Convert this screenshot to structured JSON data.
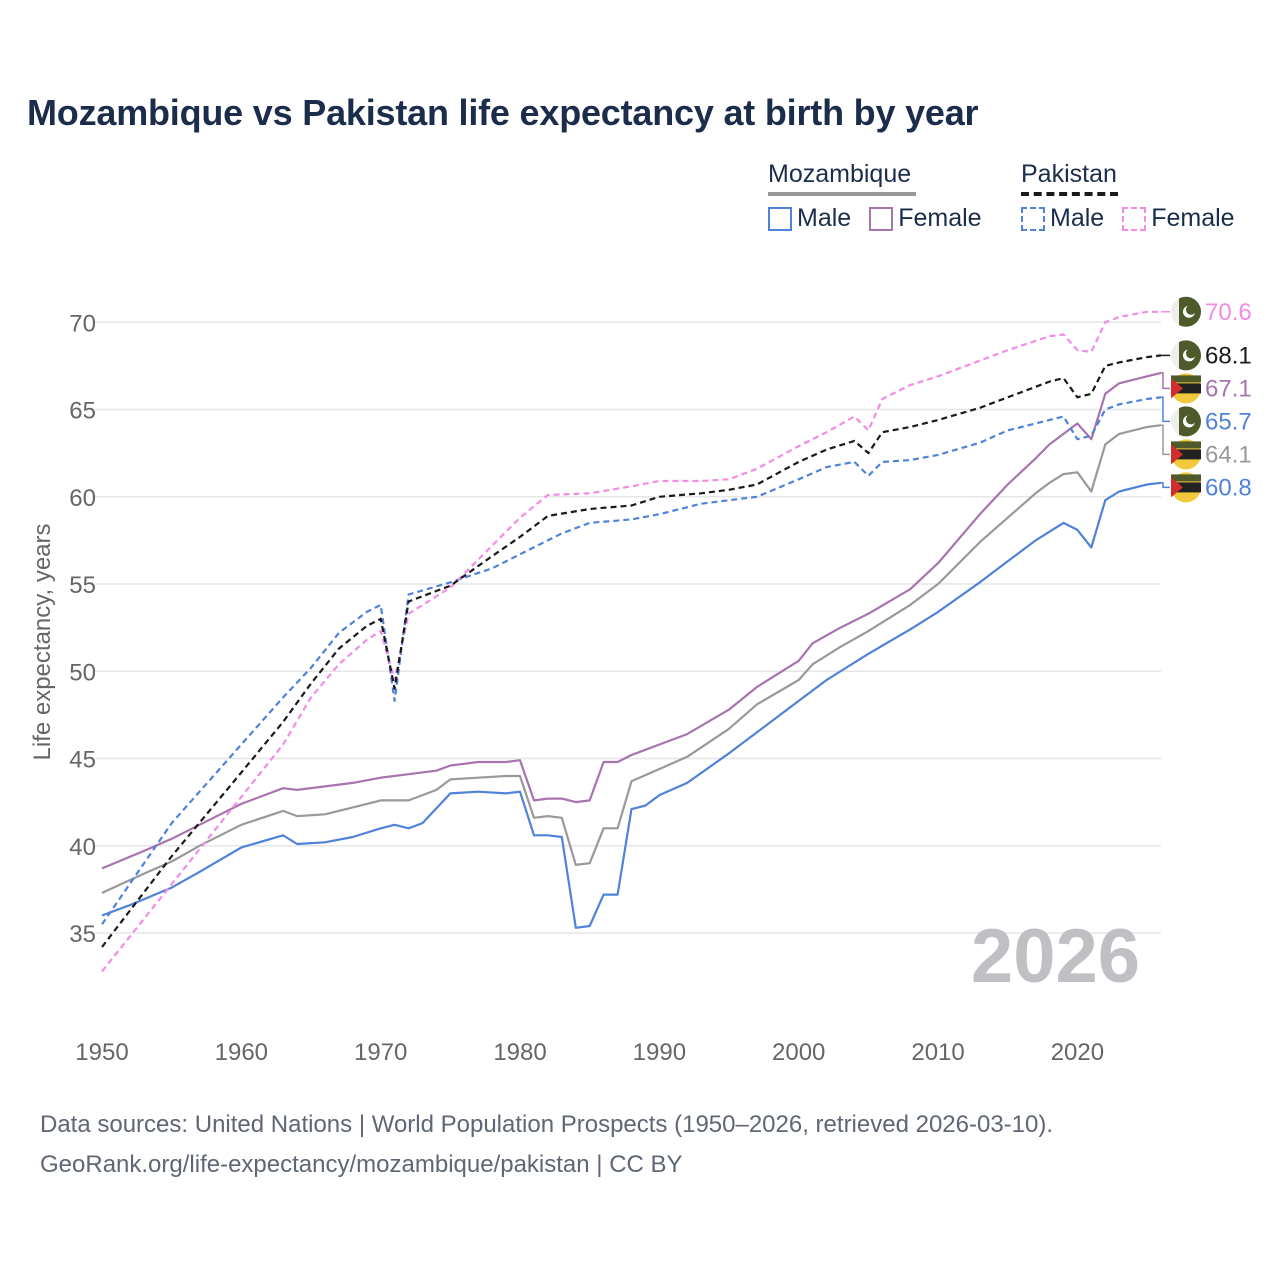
{
  "title": "Mozambique vs Pakistan life expectancy at birth by year",
  "legend": {
    "mozambique": {
      "label": "Mozambique",
      "male": "Male",
      "female": "Female"
    },
    "pakistan": {
      "label": "Pakistan",
      "male": "Male",
      "female": "Female"
    }
  },
  "colors": {
    "moz_male": "#4f82d8",
    "moz_female": "#a873ae",
    "moz_total": "#999999",
    "pak_male": "#4f82d8",
    "pak_female": "#f28ce6",
    "pak_total": "#1a1a1a",
    "grid": "#e6e6e6",
    "year_watermark": "#c0c0c4",
    "flag_pakistan": "#4e5a2a",
    "flag_mozambique": "#f2c93a"
  },
  "source": {
    "line1": "Data sources: United Nations | World Population Prospects (1950–2026, retrieved 2026-03-10).",
    "line2": "GeoRank.org/life-expectancy/mozambique/pakistan | CC BY"
  },
  "chart_data": {
    "type": "line",
    "title": "Mozambique vs Pakistan life expectancy at birth by year",
    "xlabel": "",
    "ylabel": "Life expectancy, years",
    "xlim": [
      1950,
      2026
    ],
    "ylim": [
      30,
      73
    ],
    "x_ticks": [
      1950,
      1960,
      1970,
      1980,
      1990,
      2000,
      2010,
      2020
    ],
    "y_ticks": [
      35,
      40,
      45,
      50,
      55,
      60,
      65,
      70
    ],
    "grid": true,
    "year_label": "2026",
    "series": [
      {
        "key": "moz_male",
        "name": "Mozambique Male",
        "country": "mozambique",
        "dashed": false,
        "end_label": "60.8",
        "x": [
          1950,
          1952,
          1955,
          1957,
          1960,
          1963,
          1964,
          1966,
          1968,
          1970,
          1971,
          1972,
          1973,
          1975,
          1977,
          1979,
          1980,
          1981,
          1982,
          1983,
          1984,
          1985,
          1986,
          1987,
          1988,
          1989,
          1990,
          1992,
          1995,
          1998,
          2000,
          2002,
          2005,
          2008,
          2010,
          2013,
          2015,
          2017,
          2018,
          2019,
          2020,
          2021,
          2022,
          2023,
          2025,
          2026
        ],
        "y": [
          36.0,
          36.6,
          37.6,
          38.5,
          39.9,
          40.6,
          40.1,
          40.2,
          40.5,
          41.0,
          41.2,
          41.0,
          41.3,
          43.0,
          43.1,
          43.0,
          43.1,
          40.6,
          40.6,
          40.5,
          35.3,
          35.4,
          37.2,
          37.2,
          42.1,
          42.3,
          42.9,
          43.6,
          45.3,
          47.1,
          48.3,
          49.5,
          51.0,
          52.4,
          53.4,
          55.1,
          56.3,
          57.5,
          58.0,
          58.5,
          58.1,
          57.1,
          59.8,
          60.3,
          60.7,
          60.8
        ]
      },
      {
        "key": "moz_female",
        "name": "Mozambique Female",
        "country": "mozambique",
        "dashed": false,
        "end_label": "67.1",
        "x": [
          1950,
          1953,
          1955,
          1957,
          1960,
          1963,
          1964,
          1966,
          1968,
          1970,
          1972,
          1974,
          1975,
          1977,
          1979,
          1980,
          1981,
          1982,
          1983,
          1984,
          1985,
          1986,
          1987,
          1988,
          1990,
          1992,
          1995,
          1997,
          2000,
          2001,
          2003,
          2005,
          2008,
          2010,
          2013,
          2015,
          2017,
          2018,
          2019,
          2020,
          2021,
          2022,
          2023,
          2025,
          2026
        ],
        "y": [
          38.7,
          39.7,
          40.4,
          41.2,
          42.4,
          43.3,
          43.2,
          43.4,
          43.6,
          43.9,
          44.1,
          44.3,
          44.6,
          44.8,
          44.8,
          44.9,
          42.6,
          42.7,
          42.7,
          42.5,
          42.6,
          44.8,
          44.8,
          45.2,
          45.8,
          46.4,
          47.8,
          49.1,
          50.6,
          51.6,
          52.5,
          53.3,
          54.7,
          56.2,
          59.0,
          60.7,
          62.2,
          63.0,
          63.6,
          64.2,
          63.3,
          65.9,
          66.5,
          66.9,
          67.1
        ]
      },
      {
        "key": "moz_total",
        "name": "Mozambique",
        "country": "mozambique",
        "dashed": false,
        "end_label": "64.1",
        "x": [
          1950,
          1953,
          1955,
          1957,
          1960,
          1963,
          1964,
          1966,
          1968,
          1970,
          1972,
          1974,
          1975,
          1977,
          1979,
          1980,
          1981,
          1982,
          1983,
          1984,
          1985,
          1986,
          1987,
          1988,
          1990,
          1992,
          1995,
          1997,
          2000,
          2001,
          2003,
          2005,
          2008,
          2010,
          2013,
          2015,
          2017,
          2018,
          2019,
          2020,
          2021,
          2022,
          2023,
          2025,
          2026
        ],
        "y": [
          37.3,
          38.4,
          39.1,
          40.0,
          41.2,
          42.0,
          41.7,
          41.8,
          42.2,
          42.6,
          42.6,
          43.2,
          43.8,
          43.9,
          44.0,
          44.0,
          41.6,
          41.7,
          41.6,
          38.9,
          39.0,
          41.0,
          41.0,
          43.7,
          44.4,
          45.1,
          46.7,
          48.1,
          49.5,
          50.4,
          51.4,
          52.3,
          53.8,
          55.0,
          57.4,
          58.8,
          60.2,
          60.8,
          61.3,
          61.4,
          60.3,
          63.0,
          63.6,
          64.0,
          64.1
        ]
      },
      {
        "key": "pak_male",
        "name": "Pakistan Male",
        "country": "pakistan",
        "dashed": true,
        "end_label": "65.7",
        "x": [
          1950,
          1955,
          1960,
          1963,
          1965,
          1967,
          1969,
          1970,
          1971,
          1972,
          1975,
          1978,
          1980,
          1983,
          1985,
          1988,
          1990,
          1993,
          1995,
          1997,
          2000,
          2002,
          2004,
          2005,
          2006,
          2008,
          2010,
          2013,
          2015,
          2018,
          2019,
          2020,
          2021,
          2022,
          2023,
          2025,
          2026
        ],
        "y": [
          35.5,
          41.3,
          45.8,
          48.5,
          50.2,
          52.2,
          53.4,
          53.8,
          48.3,
          54.4,
          55.1,
          55.9,
          56.7,
          57.9,
          58.5,
          58.7,
          59.0,
          59.6,
          59.8,
          60.0,
          61.0,
          61.7,
          62.0,
          61.2,
          62.0,
          62.1,
          62.4,
          63.1,
          63.8,
          64.4,
          64.6,
          63.3,
          63.5,
          65.0,
          65.3,
          65.6,
          65.7
        ]
      },
      {
        "key": "pak_female",
        "name": "Pakistan Female",
        "country": "pakistan",
        "dashed": true,
        "end_label": "70.6",
        "x": [
          1950,
          1955,
          1960,
          1963,
          1965,
          1967,
          1969,
          1970,
          1971,
          1972,
          1975,
          1978,
          1980,
          1982,
          1985,
          1988,
          1990,
          1993,
          1995,
          1997,
          2000,
          2002,
          2004,
          2005,
          2006,
          2008,
          2010,
          2013,
          2015,
          2018,
          2019,
          2020,
          2021,
          2022,
          2023,
          2025,
          2026
        ],
        "y": [
          32.8,
          37.8,
          42.8,
          45.8,
          48.5,
          50.4,
          51.8,
          52.3,
          49.5,
          53.3,
          54.8,
          57.2,
          58.8,
          60.1,
          60.2,
          60.6,
          60.9,
          60.9,
          61.0,
          61.6,
          62.9,
          63.7,
          64.6,
          63.8,
          65.6,
          66.4,
          66.9,
          67.8,
          68.4,
          69.2,
          69.3,
          68.4,
          68.3,
          70.0,
          70.3,
          70.6,
          70.6
        ]
      },
      {
        "key": "pak_total",
        "name": "Pakistan",
        "country": "pakistan",
        "dashed": true,
        "end_label": "68.1",
        "x": [
          1950,
          1955,
          1960,
          1963,
          1965,
          1967,
          1969,
          1970,
          1971,
          1972,
          1975,
          1978,
          1980,
          1982,
          1985,
          1988,
          1990,
          1993,
          1995,
          1997,
          2000,
          2002,
          2004,
          2005,
          2006,
          2008,
          2010,
          2013,
          2015,
          2018,
          2019,
          2020,
          2021,
          2022,
          2023,
          2025,
          2026
        ],
        "y": [
          34.2,
          39.4,
          44.2,
          47.1,
          49.3,
          51.3,
          52.6,
          53.0,
          49.0,
          54.0,
          54.9,
          56.6,
          57.7,
          58.9,
          59.3,
          59.5,
          60.0,
          60.2,
          60.4,
          60.7,
          62.0,
          62.7,
          63.2,
          62.5,
          63.7,
          64.0,
          64.4,
          65.1,
          65.7,
          66.6,
          66.8,
          65.7,
          65.9,
          67.5,
          67.7,
          68.0,
          68.1
        ]
      }
    ]
  }
}
